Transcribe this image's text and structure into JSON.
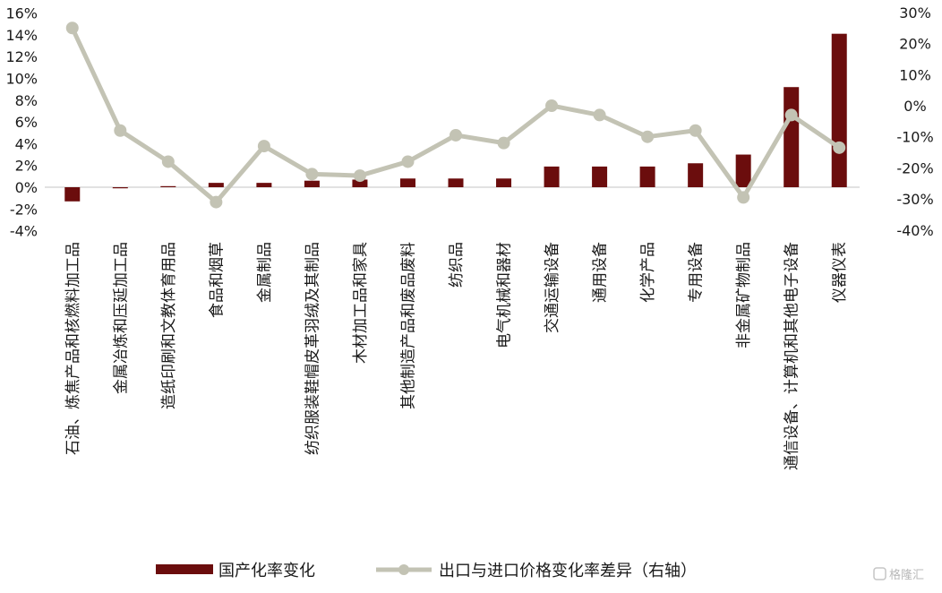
{
  "chart_data": {
    "type": "bar",
    "categories": [
      "石油、炼焦产品和核燃料加工品",
      "金属冶炼和压延加工品",
      "造纸印刷和文教体育用品",
      "食品和烟草",
      "金属制品",
      "纺织服装鞋帽皮革羽绒及其制品",
      "木材加工品和家具",
      "其他制造产品和废品废料",
      "纺织品",
      "电气机械和器材",
      "交通运输设备",
      "通用设备",
      "化学产品",
      "专用设备",
      "非金属矿物制品",
      "通信设备、计算机和其他电子设备",
      "仪器仪表"
    ],
    "series": [
      {
        "name": "国产化率变化",
        "type": "bar",
        "axis": "left",
        "color": "#6b0d0d",
        "values": [
          -1.3,
          -0.1,
          0.0,
          0.4,
          0.4,
          0.6,
          0.7,
          0.8,
          0.8,
          0.8,
          1.9,
          1.9,
          1.9,
          2.2,
          3.0,
          9.2,
          14.1
        ]
      },
      {
        "name": "出口与进口价格变化率差异（右轴）",
        "type": "line",
        "axis": "right",
        "color": "#c3c3b4",
        "values": [
          25,
          -8,
          -18,
          -31,
          -13,
          -22,
          -22.5,
          -18,
          -9.5,
          -12,
          0,
          -3,
          -10,
          -8,
          -29.5,
          -3,
          -13.5
        ]
      }
    ],
    "yaxis_left": {
      "min": -4,
      "max": 16,
      "step": 2,
      "format": "percent"
    },
    "yaxis_right": {
      "min": -40,
      "max": 30,
      "step": 10,
      "format": "percent"
    },
    "grid": false,
    "legend_position": "bottom"
  },
  "watermark": "格隆汇"
}
